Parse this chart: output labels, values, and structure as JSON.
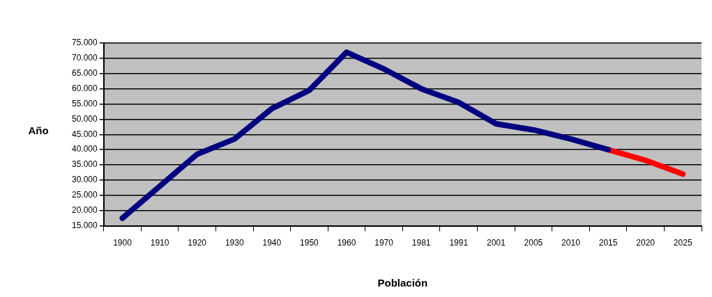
{
  "chart_data": {
    "type": "line",
    "xlabel": "Población",
    "ylabel": "Año",
    "categories": [
      "1900",
      "1910",
      "1920",
      "1930",
      "1940",
      "1950",
      "1960",
      "1970",
      "1981",
      "1991",
      "2001",
      "2005",
      "2010",
      "2015",
      "2020",
      "2025"
    ],
    "series": [
      {
        "color": "#000080",
        "values": [
          17500,
          28000,
          38500,
          43500,
          53500,
          59500,
          72000,
          66500,
          60000,
          55500,
          48500,
          46500,
          43500,
          40000,
          null,
          null
        ]
      },
      {
        "color": "#ff0000",
        "values": [
          null,
          null,
          null,
          null,
          null,
          null,
          null,
          null,
          null,
          null,
          null,
          null,
          null,
          40000,
          36500,
          32000
        ]
      }
    ],
    "ylim": [
      15000,
      75000
    ],
    "yticks": [
      {
        "value": 15000,
        "label": "15.000"
      },
      {
        "value": 20000,
        "label": "20.000"
      },
      {
        "value": 25000,
        "label": "25.000"
      },
      {
        "value": 30000,
        "label": "30.000"
      },
      {
        "value": 35000,
        "label": "35.000"
      },
      {
        "value": 40000,
        "label": "40.000"
      },
      {
        "value": 45000,
        "label": "45.000"
      },
      {
        "value": 50000,
        "label": "50.000"
      },
      {
        "value": 55000,
        "label": "55.000"
      },
      {
        "value": 60000,
        "label": "60.000"
      },
      {
        "value": 65000,
        "label": "65.000"
      },
      {
        "value": 70000,
        "label": "70.000"
      },
      {
        "value": 75000,
        "label": "75.000"
      }
    ],
    "grid": "y",
    "legend": false,
    "marker": "none",
    "line_style": "solid"
  }
}
